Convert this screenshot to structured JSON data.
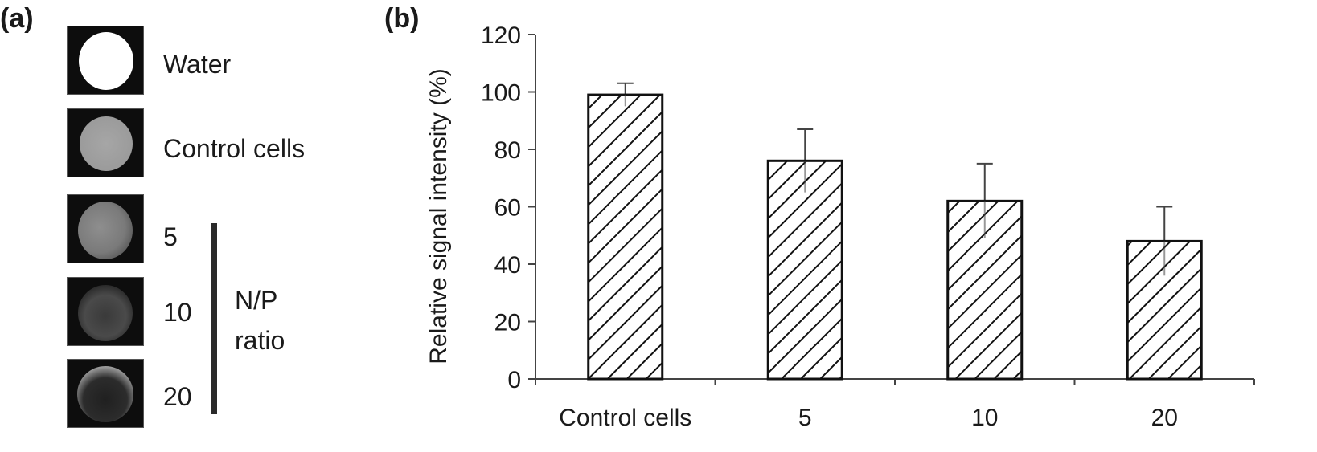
{
  "panel_a": {
    "label": "(a)",
    "images": [
      {
        "label": "Water"
      },
      {
        "label": "Control cells"
      },
      {
        "label": "5"
      },
      {
        "label": "10"
      },
      {
        "label": "20"
      }
    ],
    "group_label_line1": "N/P",
    "group_label_line2": "ratio"
  },
  "panel_b": {
    "label": "(b)"
  },
  "chart_data": {
    "type": "bar",
    "categories": [
      "Control cells",
      "5",
      "10",
      "20"
    ],
    "values": [
      99,
      76,
      62,
      48
    ],
    "errors": [
      4,
      11,
      13,
      12
    ],
    "title": "",
    "xlabel": "",
    "ylabel": "Relative signal intensity (%)",
    "ylim": [
      0,
      120
    ],
    "yticks": [
      0,
      20,
      40,
      60,
      80,
      100,
      120
    ],
    "bar_pattern": "diagonal-hatch",
    "grid": false,
    "legend": "none"
  }
}
